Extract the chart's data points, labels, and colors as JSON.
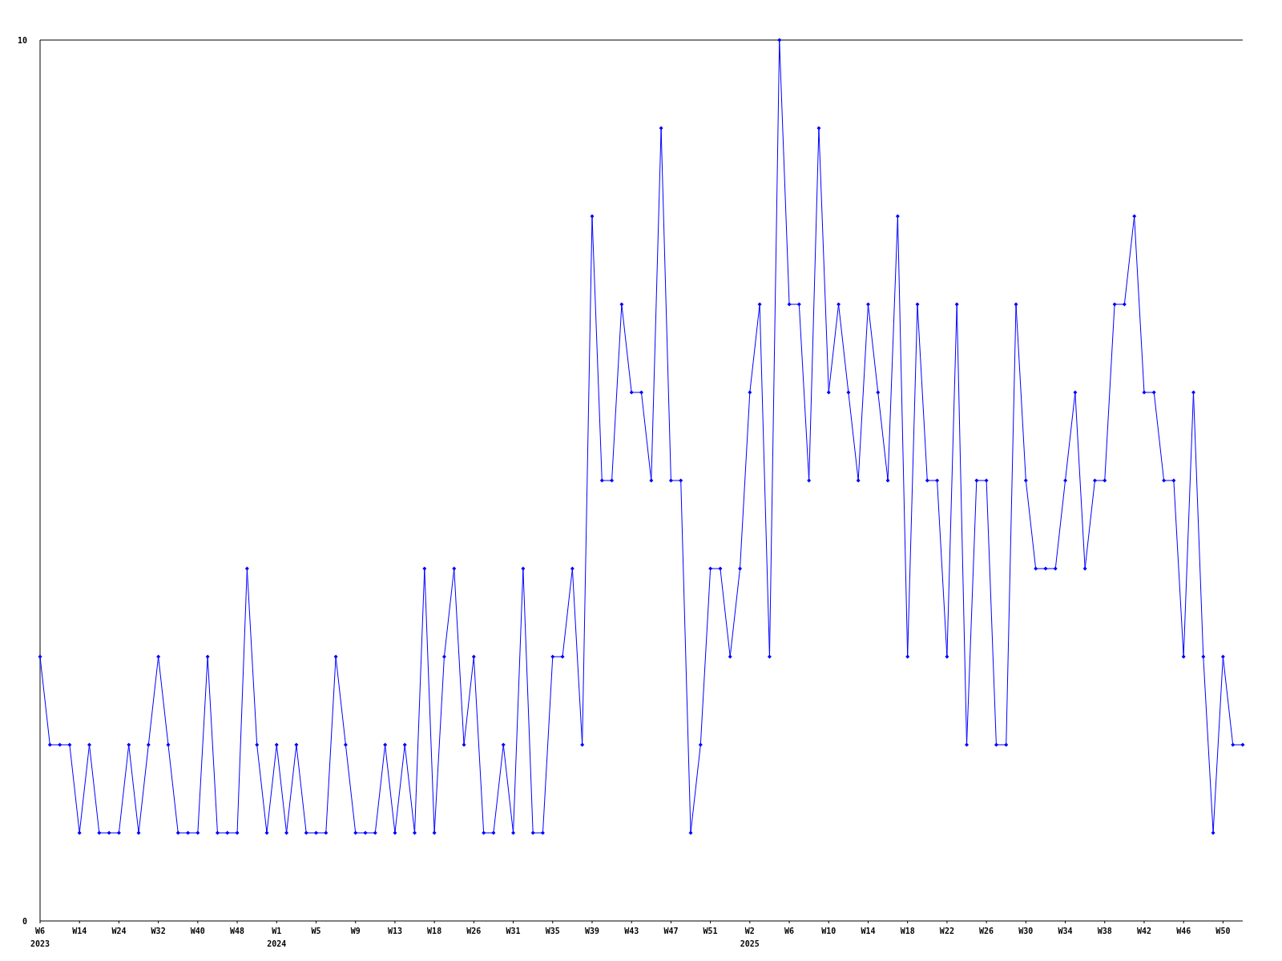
{
  "chart_data": {
    "type": "line",
    "categories": [
      "W6\n2023",
      null,
      null,
      null,
      "W14",
      null,
      null,
      null,
      "W24",
      null,
      null,
      null,
      "W32",
      null,
      null,
      null,
      "W40",
      null,
      null,
      null,
      "W48",
      null,
      null,
      null,
      "W1\n2024",
      null,
      null,
      null,
      "W5",
      null,
      null,
      null,
      "W9",
      null,
      null,
      null,
      "W13",
      null,
      null,
      null,
      "W18",
      null,
      null,
      null,
      "W26",
      null,
      null,
      null,
      "W31",
      null,
      null,
      null,
      "W35",
      null,
      null,
      null,
      "W39",
      null,
      null,
      null,
      "W43",
      null,
      null,
      null,
      "W47",
      null,
      null,
      null,
      "W51",
      null,
      null,
      null,
      "W2\n2025",
      null,
      null,
      null,
      "W6",
      null,
      null,
      null,
      "W10",
      null,
      null,
      null,
      "W14",
      null,
      null,
      null,
      "W18",
      null,
      null,
      null,
      "W22",
      null,
      null,
      null,
      "W26",
      null,
      null,
      null,
      "W30",
      null,
      null,
      null,
      "W34",
      null,
      null,
      null,
      "W38",
      null,
      null,
      null,
      "W42",
      null,
      null,
      null,
      "W46",
      null,
      null,
      null,
      "W50",
      null,
      null
    ],
    "series": [
      {
        "color": "#0000ff",
        "values": [
          3,
          2,
          2,
          2,
          1,
          2,
          1,
          1,
          1,
          2,
          1,
          2,
          3,
          2,
          1,
          1,
          1,
          3,
          1,
          1,
          1,
          4,
          2,
          1,
          2,
          1,
          2,
          1,
          1,
          1,
          3,
          2,
          1,
          1,
          1,
          2,
          1,
          2,
          1,
          4,
          1,
          3,
          4,
          2,
          3,
          1,
          1,
          2,
          1,
          4,
          1,
          1,
          3,
          3,
          4,
          2,
          8,
          5,
          5,
          7,
          6,
          6,
          5,
          9,
          5,
          5,
          1,
          2,
          4,
          4,
          3,
          4,
          6,
          7,
          3,
          10,
          7,
          7,
          5,
          9,
          6,
          7,
          6,
          5,
          7,
          6,
          5,
          8,
          3,
          7,
          5,
          5,
          3,
          7,
          2,
          5,
          5,
          2,
          2,
          7,
          5,
          4,
          4,
          4,
          5,
          6,
          4,
          5,
          5,
          7,
          7,
          8,
          6,
          6,
          5,
          5,
          3,
          6,
          3,
          1,
          3,
          2,
          2
        ]
      }
    ],
    "ylim": [
      0,
      10
    ],
    "yticks": [
      0,
      10
    ],
    "grid": false,
    "marker": "diamond",
    "line_style": "solid"
  }
}
